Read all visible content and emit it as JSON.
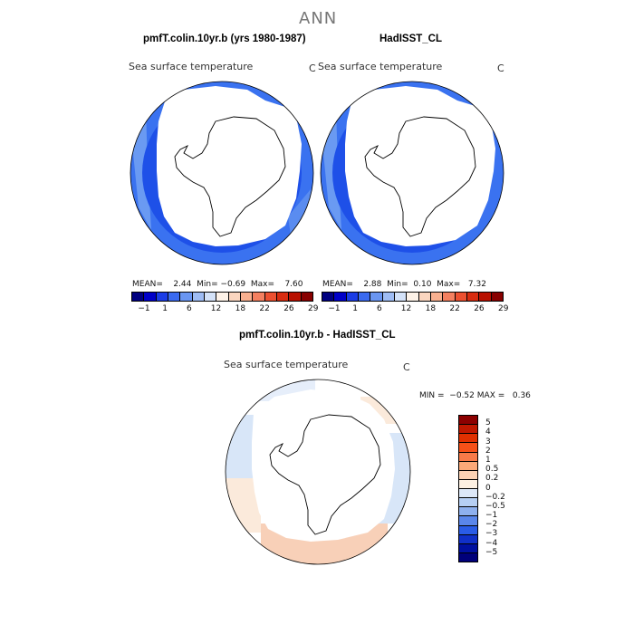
{
  "title": "ANN",
  "panels": [
    {
      "case": "pmfT.colin.10yr.b (yrs 1980-1987)",
      "variable": "Sea surface temperature",
      "units": "C",
      "stats": {
        "mean_label": "MEAN=",
        "mean": "2.44",
        "min_label": "Min=",
        "min": "−0.69",
        "max_label": "Max=",
        "max": "7.60"
      }
    },
    {
      "case": "HadISST_CL",
      "variable": "Sea surface temperature",
      "units": "C",
      "stats": {
        "mean_label": "MEAN=",
        "mean": "2.88",
        "min_label": "Min=",
        "min": "0.10",
        "max_label": "Max=",
        "max": "7.32"
      }
    }
  ],
  "abs_colorbar": {
    "colors": [
      "#000080",
      "#0000c8",
      "#1a3ce6",
      "#3a6af0",
      "#6a96f2",
      "#9ebcf4",
      "#d4e2f8",
      "#fdf2e8",
      "#fbd6c0",
      "#f8b090",
      "#f48060",
      "#ec5030",
      "#d82c10",
      "#b81000",
      "#880000"
    ],
    "ticks": [
      "−1",
      "1",
      "6",
      "12",
      "18",
      "22",
      "26",
      "29"
    ]
  },
  "difference": {
    "case": "pmfT.colin.10yr.b - HadISST_CL",
    "variable": "Sea surface temperature",
    "units": "C",
    "min_label": "MIN =",
    "min": "−0.52",
    "max_label": "MAX =",
    "max": "0.36"
  },
  "diff_colorbar": {
    "colors": [
      "#8c0000",
      "#c01800",
      "#e03000",
      "#f55018",
      "#f87a48",
      "#fba878",
      "#fcd2b4",
      "#fdf0e2",
      "#dde8f8",
      "#b6cff4",
      "#8eb0ee",
      "#5a86ea",
      "#2a5ce6",
      "#1030c8",
      "#0010a0",
      "#00007a"
    ],
    "labels": [
      "5",
      "4",
      "3",
      "2",
      "1",
      "0.5",
      "0.2",
      "0",
      "−0.2",
      "−0.5",
      "−1",
      "−2",
      "−3",
      "−4",
      "−5"
    ]
  },
  "map_colors": {
    "ocean_band_dark": "#1e50e8",
    "ocean_band_mid": "#3a72f0",
    "ocean_band_light": "#6a9af2",
    "land": "#ffffff",
    "coast": "#000000",
    "diff_neutral": "#fbeadb",
    "diff_cool": "#d8e6f8",
    "diff_warm": "#f8d0b8"
  }
}
